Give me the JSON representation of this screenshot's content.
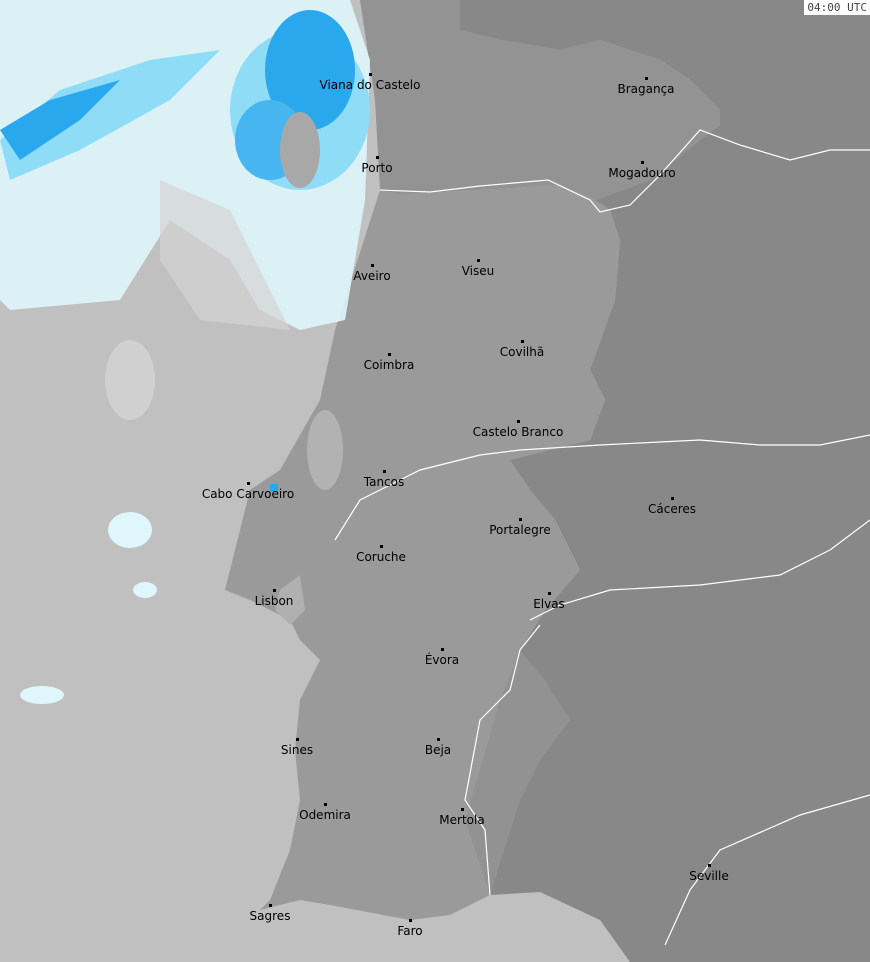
{
  "timestamp": "04:00 UTC",
  "colors": {
    "sea": "#c0c0c0",
    "portugal": "#9a9a9a",
    "spain": "#888888",
    "north_spain": "#939393",
    "radar_light": "#dff6fc",
    "radar_mid": "#8fdcf7",
    "radar_strong": "#2aa8ee",
    "rivers": "#ffffff"
  },
  "cities": [
    {
      "name": "Viana do Castelo"
    },
    {
      "name": "Bragança"
    },
    {
      "name": "Porto"
    },
    {
      "name": "Mogadouro"
    },
    {
      "name": "Aveiro"
    },
    {
      "name": "Viseu"
    },
    {
      "name": "Covilhã"
    },
    {
      "name": "Coimbra"
    },
    {
      "name": "Castelo Branco"
    },
    {
      "name": "Tancos"
    },
    {
      "name": "Cabo Carvoeiro"
    },
    {
      "name": "Cáceres"
    },
    {
      "name": "Portalegre"
    },
    {
      "name": "Coruche"
    },
    {
      "name": "Lisbon"
    },
    {
      "name": "Elvas"
    },
    {
      "name": "Évora"
    },
    {
      "name": "Sines"
    },
    {
      "name": "Beja"
    },
    {
      "name": "Odemira"
    },
    {
      "name": "Mertola"
    },
    {
      "name": "Seville"
    },
    {
      "name": "Sagres"
    },
    {
      "name": "Faro"
    }
  ]
}
